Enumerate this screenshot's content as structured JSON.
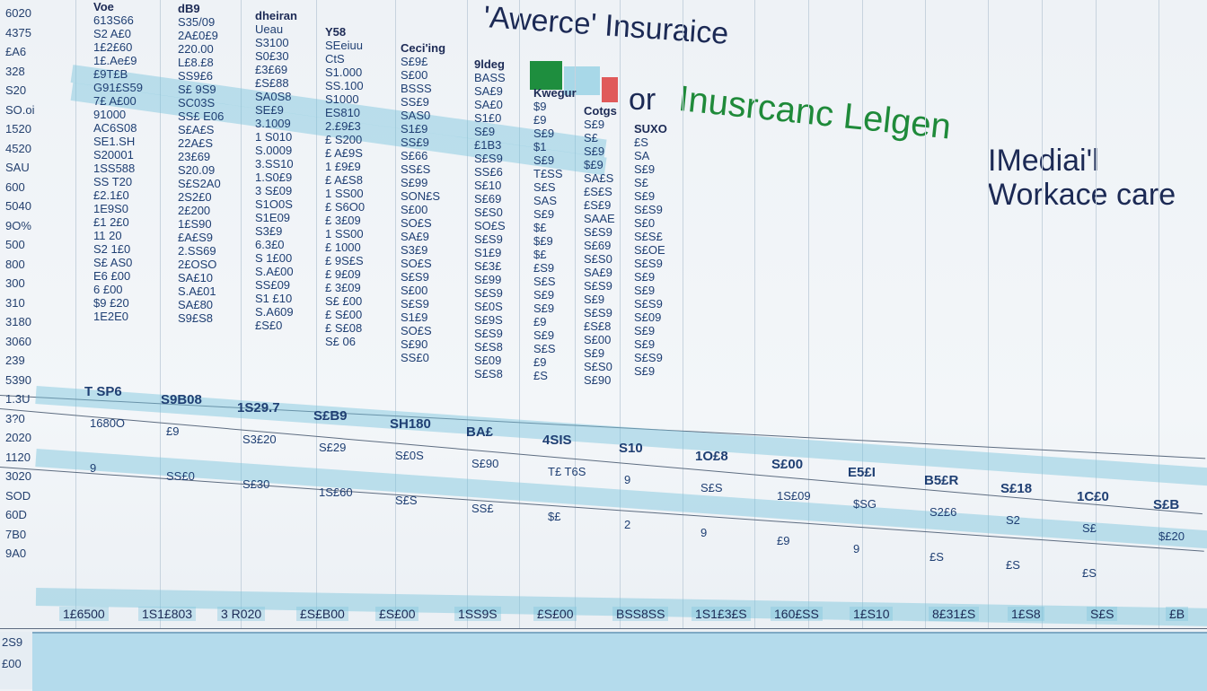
{
  "header": {
    "title_main": "'Awerce' Insuraice",
    "title_of": "or",
    "title_green": "Inusrcanc Lelgen",
    "title_right": "IMediai'l Workace care"
  },
  "colors": {
    "accent_green": "#1e8e3e",
    "highlight_blue": "#a8d8e8",
    "accent_red": "#e05a5a",
    "text_navy": "#1c2a55"
  },
  "row_labels": [
    "6020",
    "4375",
    "£A6",
    "328",
    "S20",
    "SO.oi",
    "1520",
    "4520",
    "SAU",
    "600",
    "5040",
    "9O%",
    "500",
    "800",
    "300",
    "310",
    "3180",
    "3060",
    "239",
    "5390",
    "1.3U",
    "3?0",
    "2020",
    "1120",
    "3020",
    "SOD",
    "60D",
    "7B0",
    "9A0"
  ],
  "columns": [
    {
      "header": "Voe",
      "values": [
        "613S66",
        "S2 A£0",
        "1£2£60",
        "1£.Ae£9",
        "£9T£B",
        "G91£S59",
        "7£ A£00",
        "91000",
        "AC6S08",
        "SE1.SH",
        "S20001",
        "1SS588",
        "SS T20",
        "£2.1£0",
        "1E9S0",
        "£1 2£0",
        "11 20",
        "S2 1£0",
        "S£ AS0",
        "E6 £00",
        "6 £00",
        "$9 £20",
        "1E2E0"
      ]
    },
    {
      "header": "dB9",
      "values": [
        "S35/09",
        "2A£0£9",
        "220.00",
        "L£8.£8",
        "SS9£6",
        "S£ 9S9",
        "SC03S",
        "SS£ E06",
        "S£A£S",
        "22A£S",
        "23£69",
        "S20.09",
        "S£S2A0",
        "2S2£0",
        "2£200",
        "1£S90",
        "£A£S9",
        "2.SS69",
        "2£OSO",
        "SA£10",
        "S.A£01",
        "SA£80",
        "S9£S8"
      ]
    },
    {
      "header": "dheiran",
      "values": [
        "Ueau",
        "S3100",
        "S0£30",
        "£3£69",
        "£S£88",
        "SA0S8",
        "SE£9",
        "3.1009",
        "1 S010",
        "S.0009",
        "3.SS10",
        "1.S0£9",
        "3 S£09",
        "S1O0S",
        "S1E09",
        "S3£9",
        "6.3£0",
        "S 1£00",
        "S.A£00",
        "SS£09",
        "S1 £10",
        "S.A609",
        "£S£0"
      ]
    },
    {
      "header": "Y58",
      "values": [
        "SEeiuu",
        "CtS",
        "S1.000",
        "SS.100",
        "S1000",
        "ES810",
        "2.£9£3",
        "£ S200",
        "£ A£9S",
        "1 £9£9",
        "£ A£S8",
        "1 SS00",
        "£ S6O0",
        "£ 3£09",
        "1 SS00",
        "£ 1000",
        "£ 9S£S",
        "£ 9£09",
        "£ 3£09",
        "S£ £00",
        "£ S£00",
        "£ S£08",
        "S£ 06"
      ]
    },
    {
      "header": "Ceci'ing",
      "values": [
        "S£9£",
        "S£00",
        "BSSS",
        "SS£9",
        "SAS0",
        "S1£9",
        "SS£9",
        "S£66",
        "SS£S",
        "S£99",
        "SON£S",
        "S£00",
        "SO£S",
        "SA£9",
        "S3£9",
        "SO£S",
        "S£S9",
        "S£00",
        "S£S9",
        "S1£9",
        "SO£S",
        "S£90",
        "SS£0"
      ]
    },
    {
      "header": "9ldeg",
      "values": [
        "BASS",
        "SA£9",
        "SA£0",
        "S1£0",
        "S£9",
        "£1B3",
        "S£S9",
        "SS£6",
        "S£10",
        "S£69",
        "S£S0",
        "SO£S",
        "S£S9",
        "S1£9",
        "S£3£",
        "S£99",
        "S£S9",
        "S£0S",
        "S£9S",
        "S£S9",
        "S£S8",
        "S£09",
        "S£S8"
      ]
    },
    {
      "header": "Kwegur",
      "values": [
        "$9",
        "£9",
        "S£9",
        "$1",
        "S£9",
        "T£SS",
        "S£S",
        "SAS",
        "S£9",
        "$£",
        "$£9",
        "$£",
        "£S9",
        "S£S",
        "S£9",
        "S£9",
        "£9",
        "S£9",
        "S£S",
        "£9",
        "£S"
      ]
    },
    {
      "header": "Cotgs",
      "values": [
        "S£9",
        "S£",
        "S£9",
        "$£9",
        "SA£S",
        "£S£S",
        "£S£9",
        "SAAE",
        "S£S9",
        "S£69",
        "S£S0",
        "SA£9",
        "S£S9",
        "S£9",
        "S£S9",
        "£S£8",
        "S£00",
        "S£9",
        "S£S0",
        "S£90"
      ]
    },
    {
      "header": "SUXO",
      "values": [
        "£S",
        "SA",
        "S£9",
        "S£",
        "S£9",
        "S£S9",
        "S£0",
        "S£S£",
        "S£OE",
        "S£S9",
        "S£9",
        "S£9",
        "S£S9",
        "S£09",
        "S£9",
        "S£9",
        "S£S9",
        "S£9"
      ]
    }
  ],
  "highlighted": [
    "T SP6",
    "S9B08",
    "1S29.7",
    "S£B9",
    "SH180",
    "BA£",
    "4SIS",
    "S10",
    "1O£8",
    "S£00",
    "E5£I",
    "B5£R",
    "S£18",
    "1C£0",
    "S£B"
  ],
  "lower_values": [
    "1680O",
    "£9",
    "S3£20",
    "S£29",
    "S£0S",
    "S£90",
    "T£ T6S",
    "9",
    "S£S",
    "1S£09",
    "$SG",
    "S2£6",
    "S2",
    "S£",
    "$£20",
    "9",
    "SS£0",
    "S£30",
    "1S£60",
    "S£S",
    "SS£",
    "$£",
    "2",
    "9",
    "£9",
    "9",
    "£S",
    "£S",
    "£S"
  ],
  "totals": [
    "1£6500",
    "1S1£803",
    "3 R020",
    "£S£B00",
    "£S£00",
    "1SS9S",
    "£S£00",
    "BSS8SS",
    "1S1£3£S",
    "160£SS",
    "1£S10",
    "8£31£S",
    "1£S8",
    "S£S",
    "£B"
  ],
  "footer_labels": [
    "2S9",
    "£00"
  ]
}
